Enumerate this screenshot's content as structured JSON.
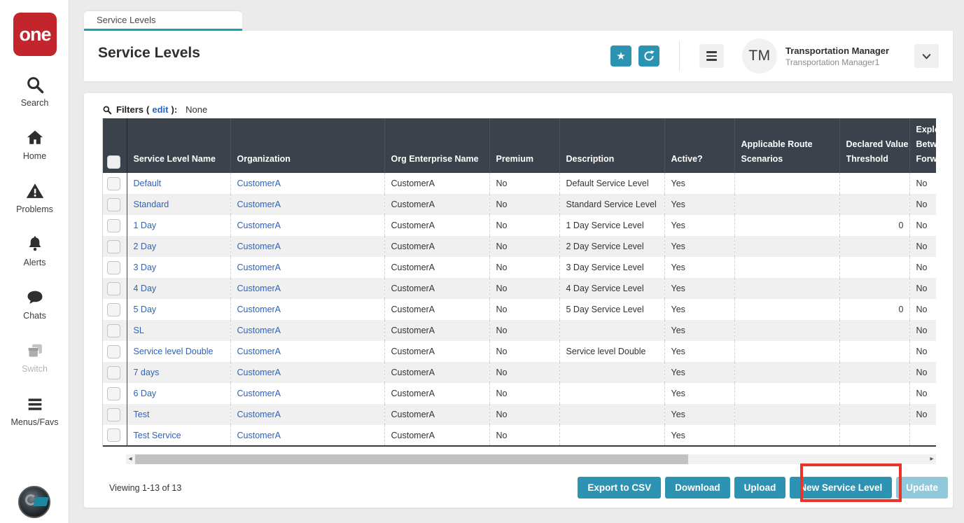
{
  "app": {
    "logo_text": "one"
  },
  "sidebar": {
    "items": [
      {
        "label": "Search"
      },
      {
        "label": "Home"
      },
      {
        "label": "Problems"
      },
      {
        "label": "Alerts"
      },
      {
        "label": "Chats"
      },
      {
        "label": "Switch",
        "disabled": true
      },
      {
        "label": "Menus/Favs"
      }
    ]
  },
  "tab": {
    "label": "Service Levels"
  },
  "header": {
    "title": "Service Levels",
    "user": {
      "initials": "TM",
      "name": "Transportation Manager",
      "subtitle": "Transportation Manager1"
    }
  },
  "filters": {
    "label": "Filters",
    "edit": "edit",
    "value": "None"
  },
  "table": {
    "columns": [
      [
        "Service Level Name"
      ],
      [
        "Organization"
      ],
      [
        "Org Enterprise Name"
      ],
      [
        "Premium"
      ],
      [
        "Description"
      ],
      [
        "Active?"
      ],
      [
        "Applicable Route",
        "Scenarios"
      ],
      [
        "Declared Value",
        "Threshold"
      ],
      [
        "Explor",
        "Betwe",
        "Forwa"
      ]
    ],
    "rows": [
      [
        "Default",
        "CustomerA",
        "CustomerA",
        "No",
        "Default Service Level",
        "Yes",
        "",
        "",
        "No"
      ],
      [
        "Standard",
        "CustomerA",
        "CustomerA",
        "No",
        "Standard Service Level",
        "Yes",
        "",
        "",
        "No"
      ],
      [
        "1 Day",
        "CustomerA",
        "CustomerA",
        "No",
        "1 Day Service Level",
        "Yes",
        "",
        "0",
        "No"
      ],
      [
        "2 Day",
        "CustomerA",
        "CustomerA",
        "No",
        "2 Day Service Level",
        "Yes",
        "",
        "",
        "No"
      ],
      [
        "3 Day",
        "CustomerA",
        "CustomerA",
        "No",
        "3 Day Service Level",
        "Yes",
        "",
        "",
        "No"
      ],
      [
        "4 Day",
        "CustomerA",
        "CustomerA",
        "No",
        "4 Day Service Level",
        "Yes",
        "",
        "",
        "No"
      ],
      [
        "5 Day",
        "CustomerA",
        "CustomerA",
        "No",
        "5 Day Service Level",
        "Yes",
        "",
        "0",
        "No"
      ],
      [
        "SL",
        "CustomerA",
        "CustomerA",
        "No",
        "",
        "Yes",
        "",
        "",
        "No"
      ],
      [
        "Service level Double",
        "CustomerA",
        "CustomerA",
        "No",
        "Service level Double",
        "Yes",
        "",
        "",
        "No"
      ],
      [
        "7 days",
        "CustomerA",
        "CustomerA",
        "No",
        "",
        "Yes",
        "",
        "",
        "No"
      ],
      [
        "6 Day",
        "CustomerA",
        "CustomerA",
        "No",
        "",
        "Yes",
        "",
        "",
        "No"
      ],
      [
        "Test",
        "CustomerA",
        "CustomerA",
        "No",
        "",
        "Yes",
        "",
        "",
        "No"
      ],
      [
        "Test Service",
        "CustomerA",
        "CustomerA",
        "No",
        "",
        "Yes",
        "",
        "",
        ""
      ]
    ]
  },
  "footer": {
    "viewing": "Viewing 1-13 of 13",
    "buttons": [
      {
        "label": "Export to CSV"
      },
      {
        "label": "Download"
      },
      {
        "label": "Upload"
      },
      {
        "label": "New Service Level",
        "highlighted": true
      },
      {
        "label": "Update",
        "disabled": true
      }
    ]
  },
  "colors": {
    "accent_teal": "#2d93b2",
    "tab_underline": "#13a1b4",
    "link_blue": "#2b62c4",
    "table_header": "#3b424c",
    "logo_red": "#c2252c",
    "annotation_red": "#ea3329",
    "disabled_button": "#90c9dc"
  }
}
